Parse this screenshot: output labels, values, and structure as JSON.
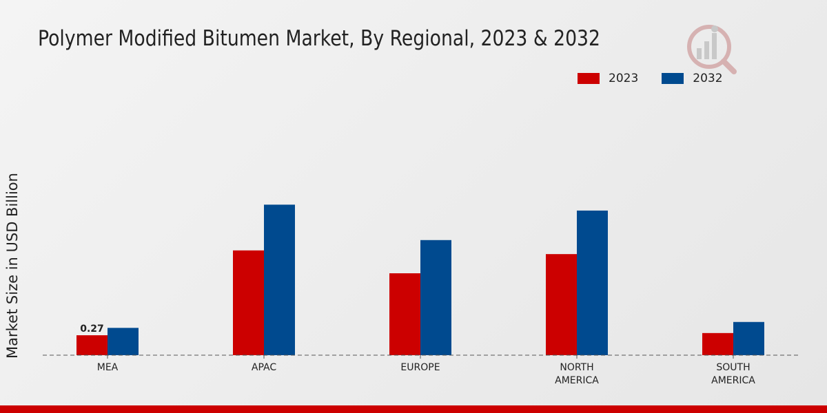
{
  "chart_data": {
    "type": "bar",
    "title": "Polymer Modified Bitumen Market, By Regional, 2023 & 2032",
    "xlabel": "",
    "ylabel": "Market Size in USD Billion",
    "categories": [
      "MEA",
      "APAC",
      "EUROPE",
      "NORTH AMERICA",
      "SOUTH AMERICA"
    ],
    "category_lines": [
      [
        "MEA"
      ],
      [
        "APAC"
      ],
      [
        "EUROPE"
      ],
      [
        "NORTH",
        "AMERICA"
      ],
      [
        "SOUTH",
        "AMERICA"
      ]
    ],
    "series": [
      {
        "name": "2023",
        "color": "#cc0000",
        "values": [
          0.27,
          1.42,
          1.11,
          1.37,
          0.3
        ]
      },
      {
        "name": "2032",
        "color": "#004a8f",
        "values": [
          0.37,
          2.04,
          1.56,
          1.96,
          0.45
        ]
      }
    ],
    "data_labels": [
      {
        "series": 0,
        "index": 0,
        "text": "0.27"
      }
    ],
    "ylim": [
      0,
      3.2
    ],
    "grid": false,
    "legend_position": "top-right"
  },
  "colors": {
    "brand_bar": "#cc0000",
    "axis": "#555555",
    "text": "#222222"
  },
  "logo": {
    "icon": "market-research-logo-icon"
  }
}
